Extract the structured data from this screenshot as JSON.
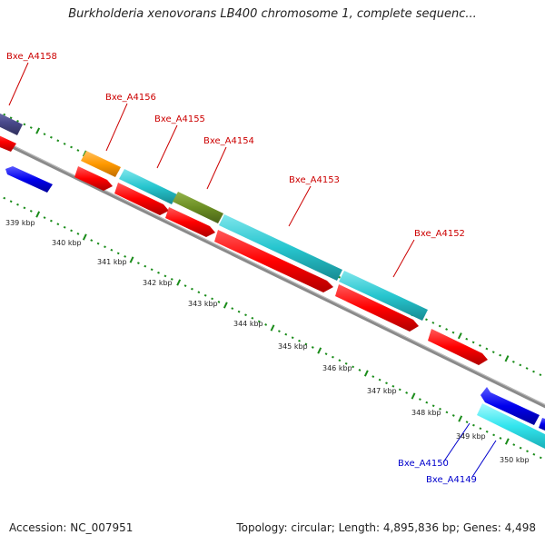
{
  "title": "Burkholderia xenovorans LB400 chromosome 1, complete sequenc...",
  "footer": {
    "accession": "Accession: NC_007951",
    "stats": "Topology: circular; Length: 4,895,836 bp; Genes: 4,498"
  },
  "colors": {
    "forward_label": "#cc0000",
    "reverse_label": "#0000cc",
    "tick": "#1a8c1a",
    "backbone": "#888888",
    "red_cds": "#ff0000",
    "cyan_cds": "#27c6cf",
    "olive_cds": "#6b8e23",
    "orange_cds": "#ff9900",
    "blue_cds": "#0000ee",
    "purple_cds": "#4a4a8c"
  },
  "scale_labels": [
    "339 kbp",
    "340 kbp",
    "341 kbp",
    "342 kbp",
    "343 kbp",
    "344 kbp",
    "345 kbp",
    "346 kbp",
    "347 kbp",
    "348 kbp",
    "349 kbp",
    "350 kbp"
  ],
  "gene_labels": {
    "forward": [
      "Bxe_A4158",
      "Bxe_A4156",
      "Bxe_A4155",
      "Bxe_A4154",
      "Bxe_A4153",
      "Bxe_A4152"
    ],
    "reverse": [
      "Bxe_A4150",
      "Bxe_A4149"
    ]
  }
}
